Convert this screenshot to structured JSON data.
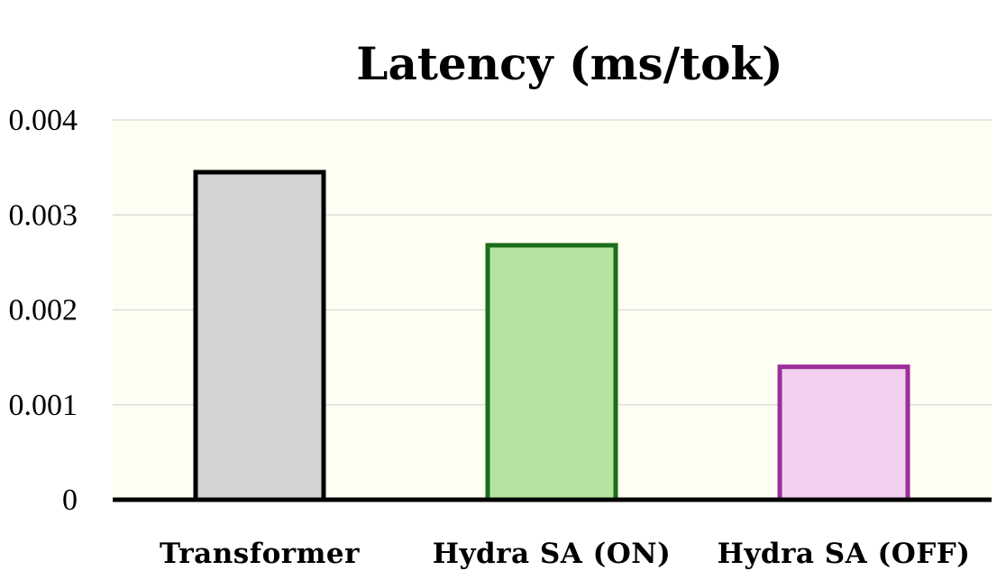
{
  "chart_data": {
    "type": "bar",
    "title": "Latency (ms/tok)",
    "xlabel": "",
    "ylabel": "",
    "categories": [
      "Transformer",
      "Hydra SA (ON)",
      "Hydra SA (OFF)"
    ],
    "values": [
      0.00345,
      0.00268,
      0.0014
    ],
    "ylim": [
      0,
      0.004
    ],
    "yticks": [
      0,
      0.001,
      0.002,
      0.003,
      0.004
    ],
    "ytick_labels": [
      "0",
      "0.001",
      "0.002",
      "0.003",
      "0.004"
    ],
    "grid": true,
    "legend": "none",
    "colors": {
      "plot_background": "#fefff2",
      "grid": "#dcdcdc",
      "axis": "#000000",
      "bar_fills": [
        "#d3d3d3",
        "#b5e4a2",
        "#f2cfee"
      ],
      "bar_strokes": [
        "#000000",
        "#1b6d1b",
        "#9b2e9b"
      ]
    }
  }
}
